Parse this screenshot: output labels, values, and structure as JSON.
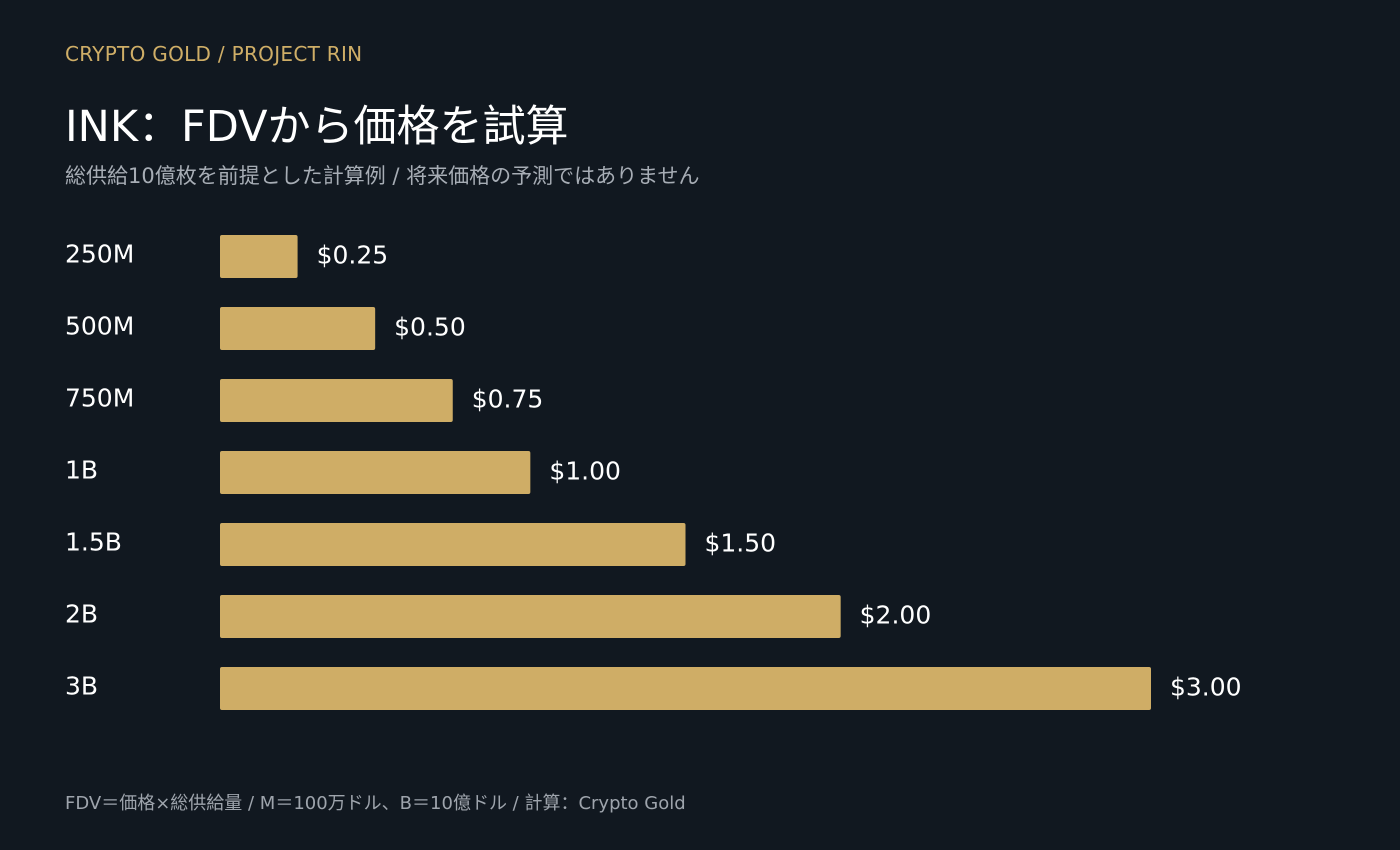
{
  "header": {
    "kicker": "CRYPTO GOLD / PROJECT RIN",
    "title": "INK：FDVから価格を試算",
    "subtitle": "総供給10億枚を前提とした計算例 / 将来価格の予測ではありません"
  },
  "footer": {
    "note": "FDV＝価格×総供給量 / M＝100万ドル、B＝10億ドル / 計算：Crypto Gold"
  },
  "colors": {
    "background": "#111820",
    "bar": "#cfad66",
    "kicker": "#cfae67"
  },
  "chart_data": {
    "type": "bar",
    "orientation": "horizontal",
    "categories": [
      "250M",
      "500M",
      "750M",
      "1B",
      "1.5B",
      "2B",
      "3B"
    ],
    "values": [
      0.25,
      0.5,
      0.75,
      1.0,
      1.5,
      2.0,
      3.0
    ],
    "value_labels": [
      "$0.25",
      "$0.50",
      "$0.75",
      "$1.00",
      "$1.50",
      "$2.00",
      "$3.00"
    ],
    "xlim": [
      0,
      3.0
    ],
    "grid": false,
    "legend": "none"
  }
}
